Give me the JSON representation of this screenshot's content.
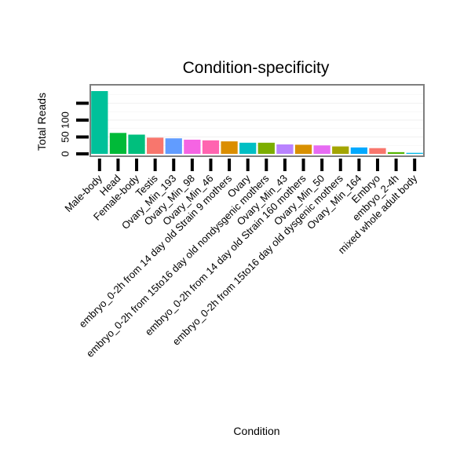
{
  "chart_data": {
    "type": "bar",
    "title": "Condition-specificity",
    "xlabel": "Condition",
    "ylabel": "Total Reads",
    "ylim": [
      0,
      200
    ],
    "yticks": [
      0,
      50,
      100
    ],
    "ytick_labels": [
      "0",
      "50",
      "100"
    ],
    "grid": true,
    "legend": "none",
    "categories": [
      "Male-body",
      "Head",
      "Female-body",
      "Testis",
      "Ovary_Min_193",
      "Ovary_Min_98",
      "Ovary_Min_46",
      "embryo_0-2h from 14 day old Strain 9 mothers",
      "Ovary",
      "embryo_0-2h from 15to16 day old nondysgenic mothers",
      "Ovary_Min_43",
      "embryo_0-2h from 14 day old Strain 160 mothers",
      "Ovary_Min_50",
      "embryo_0-2h from 15to16 day old dysgenic mothers",
      "Ovary_Min_164",
      "Embryo",
      "embryo_2-4h",
      "mixed whole adult body"
    ],
    "values": [
      186,
      62,
      57,
      48,
      46,
      42,
      40,
      37,
      33,
      33,
      28,
      27,
      25,
      22,
      19,
      17,
      5,
      3
    ],
    "colors": [
      "#00C19A",
      "#00BA38",
      "#00BF7D",
      "#F8766D",
      "#619CFF",
      "#F564E3",
      "#FF64B0",
      "#DB8E00",
      "#00BFC4",
      "#7CAE00",
      "#B983FF",
      "#D89000",
      "#E76BF3",
      "#A3A500",
      "#00A9FF",
      "#F8766D",
      "#53B400",
      "#00B8E7"
    ]
  }
}
